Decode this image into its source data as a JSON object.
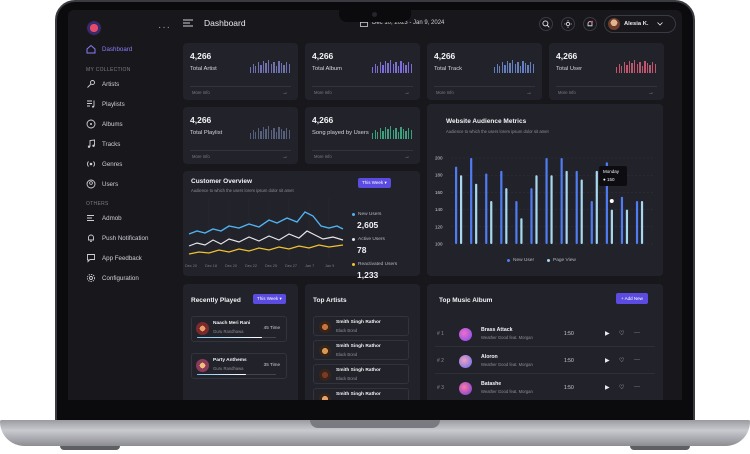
{
  "header": {
    "title": "Dashboard",
    "date_range": "Dec 10, 2023 - Jan 9, 2024",
    "user_name": "Alesia K."
  },
  "sidebar": {
    "items_top": [
      {
        "label": "Dashboard",
        "icon": "home-icon",
        "active": true
      }
    ],
    "section_collection": "MY COLLECTION",
    "collection_items": [
      {
        "label": "Artists",
        "icon": "microphone-icon"
      },
      {
        "label": "Playlists",
        "icon": "playlist-icon"
      },
      {
        "label": "Albums",
        "icon": "disc-icon"
      },
      {
        "label": "Tracks",
        "icon": "music-note-icon"
      },
      {
        "label": "Genres",
        "icon": "radio-icon"
      },
      {
        "label": "Users",
        "icon": "user-icon"
      }
    ],
    "section_others": "OTHERS",
    "other_items": [
      {
        "label": "Admob",
        "icon": "ad-icon"
      },
      {
        "label": "Push Notification",
        "icon": "bell-icon"
      },
      {
        "label": "App Feedback",
        "icon": "feedback-icon"
      },
      {
        "label": "Configuration",
        "icon": "gear-icon"
      }
    ]
  },
  "stats": [
    {
      "value": "4,266",
      "label": "Total Artist",
      "more": "More Info",
      "color": "#7b7fc4"
    },
    {
      "value": "4,266",
      "label": "Total Album",
      "more": "More Info",
      "color": "#8b7cf6"
    },
    {
      "value": "4,266",
      "label": "Total Track",
      "more": "More Info",
      "color": "#6f8fd8"
    },
    {
      "value": "4,266",
      "label": "Total User",
      "more": "More Info",
      "color": "#d9607a"
    },
    {
      "value": "4,266",
      "label": "Total Playlist",
      "more": "More Info",
      "color": "#5f6a8a"
    },
    {
      "value": "4,266",
      "label": "Song played by Users",
      "more": "More Info",
      "color": "#3fb68a"
    }
  ],
  "customer_overview": {
    "title": "Customer Overview",
    "subtitle": "Audience to which the users lorem ipsum dolor sit amet",
    "filter": "This Week",
    "legend": [
      {
        "name": "New Users",
        "value": "2,605",
        "color": "#4fb3f0"
      },
      {
        "name": "Active Users",
        "value": "78",
        "color": "#e5e5ea"
      },
      {
        "name": "Reactivated Users",
        "value": "1,233",
        "color": "#f2c230"
      }
    ],
    "x_labels": [
      "Dec 20",
      "Dec 18",
      "Dec 20",
      "Dec 22",
      "Dec 25",
      "Dec 27",
      "Jan 7",
      "Jan 9"
    ]
  },
  "audience": {
    "title": "Website Audience Metrics",
    "subtitle": "Audience to which the users lorem ipsum dolor sit amet",
    "tooltip_day": "Monday",
    "tooltip_value": "150",
    "legend_new": "New User",
    "legend_page": "Page View"
  },
  "chart_data": {
    "type": "bar",
    "y_ticks": [
      "200",
      "180",
      "160",
      "140",
      "120",
      "100"
    ],
    "ylim": [
      100,
      200
    ],
    "series": [
      {
        "name": "New User",
        "color": "#4f7cf3",
        "values": [
          190,
          200,
          182,
          185,
          150,
          165,
          200,
          200,
          185,
          150,
          195,
          155,
          150
        ]
      },
      {
        "name": "Page View",
        "color": "#a8d8f0",
        "values": [
          180,
          170,
          150,
          165,
          130,
          180,
          180,
          185,
          175,
          185,
          140,
          140,
          150
        ]
      }
    ]
  },
  "recently_played": {
    "title": "Recently Played",
    "filter": "This Week",
    "items": [
      {
        "title": "Naach Meri Rani",
        "artist": "Guru Randhawa",
        "count": "45 Time",
        "progress": 0.82
      },
      {
        "title": "Party Anthems",
        "artist": "Guru Randhawa",
        "count": "35 Time",
        "progress": 0.62
      }
    ]
  },
  "top_artists": {
    "title": "Top Artists",
    "items": [
      {
        "name": "Smith Singh Rathor",
        "group": "Black Bond"
      },
      {
        "name": "Smith Singh Rathor",
        "group": "Black Bond"
      },
      {
        "name": "Smith Singh Rathor",
        "group": "Black Bond"
      },
      {
        "name": "Smith Singh Rathor",
        "group": ""
      }
    ]
  },
  "top_albums": {
    "title": "Top Music Album",
    "add_label": "+ Add New",
    "items": [
      {
        "no": "# 1",
        "name": "Brass Attack",
        "desc": "Weather Good feat. Morgan",
        "duration": "1:50"
      },
      {
        "no": "# 2",
        "name": "Aloron",
        "desc": "Weather Good feat. Morgan",
        "duration": "1:50"
      },
      {
        "no": "# 3",
        "name": "Batashe",
        "desc": "Weather Good feat. Morgan",
        "duration": "1:50"
      }
    ]
  }
}
